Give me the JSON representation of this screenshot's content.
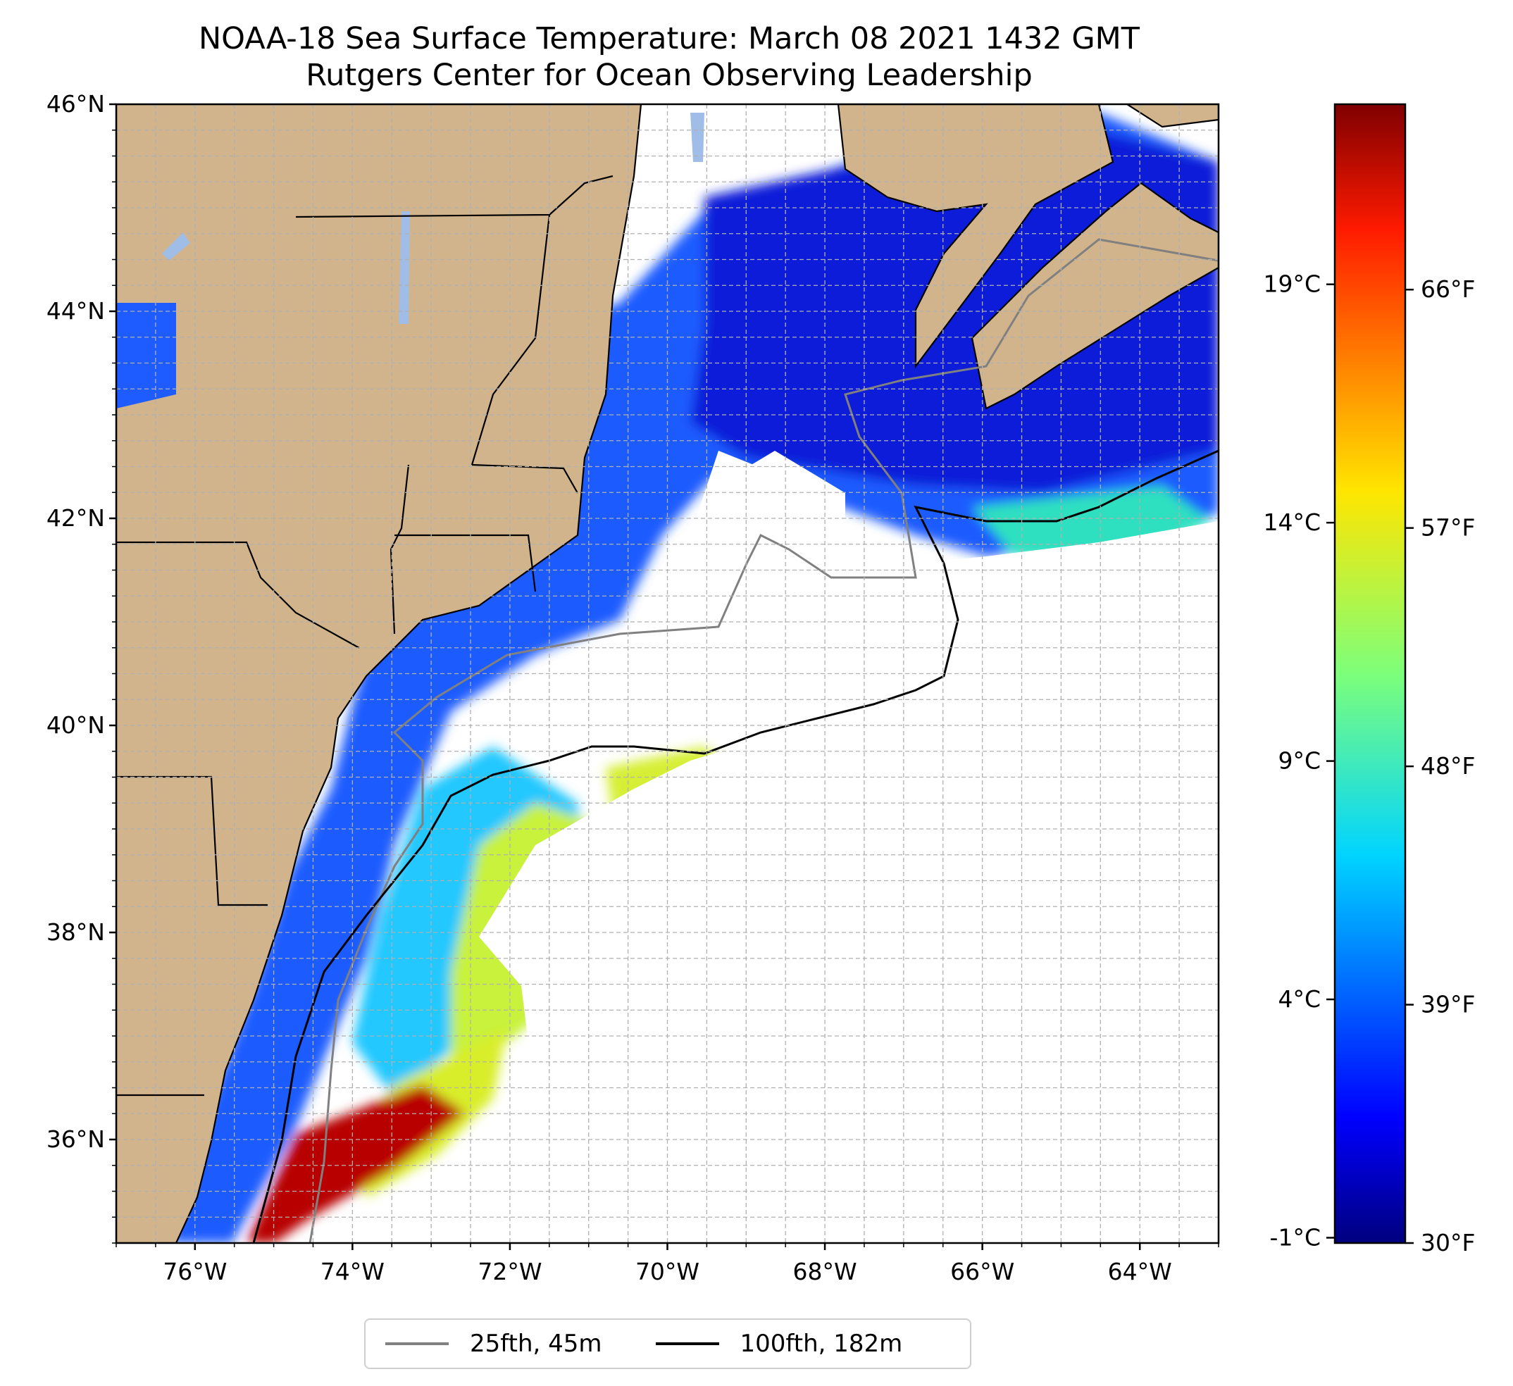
{
  "title": {
    "line1": "NOAA-18 Sea Surface Temperature: March 08 2021 1432 GMT",
    "line2": "Rutgers Center for Ocean Observing Leadership"
  },
  "map": {
    "lon_range": [
      -77,
      -63
    ],
    "lat_range": [
      35,
      46
    ],
    "lat_ticks": [
      {
        "value": 46,
        "label": "46°N"
      },
      {
        "value": 44,
        "label": "44°N"
      },
      {
        "value": 42,
        "label": "42°N"
      },
      {
        "value": 40,
        "label": "40°N"
      },
      {
        "value": 38,
        "label": "38°N"
      },
      {
        "value": 36,
        "label": "36°N"
      }
    ],
    "lon_ticks": [
      {
        "value": -76,
        "label": "76°W"
      },
      {
        "value": -74,
        "label": "74°W"
      },
      {
        "value": -72,
        "label": "72°W"
      },
      {
        "value": -70,
        "label": "70°W"
      },
      {
        "value": -68,
        "label": "68°W"
      },
      {
        "value": -66,
        "label": "66°W"
      },
      {
        "value": -64,
        "label": "64°W"
      }
    ],
    "gridlines": true,
    "colors": {
      "land": "#d2b48c",
      "lakes": "#9fbde6",
      "borders": "#000000",
      "no_data": "#ffffff",
      "grid": "#b0b0b0"
    }
  },
  "colorbar": {
    "colormap": "jet",
    "celsius_ticks": [
      {
        "value": 19,
        "label": "19°C"
      },
      {
        "value": 14,
        "label": "14°C"
      },
      {
        "value": 9,
        "label": "9°C"
      },
      {
        "value": 4,
        "label": "4°C"
      },
      {
        "value": -1,
        "label": "-1°C"
      }
    ],
    "fahrenheit_ticks": [
      {
        "value": 66,
        "label": "66°F"
      },
      {
        "value": 57,
        "label": "57°F"
      },
      {
        "value": 48,
        "label": "48°F"
      },
      {
        "value": 39,
        "label": "39°F"
      },
      {
        "value": 30,
        "label": "30°F"
      }
    ],
    "range_f": [
      30,
      73
    ]
  },
  "legend": {
    "items": [
      {
        "label": "25fth, 45m",
        "color": "#808080"
      },
      {
        "label": "100fth, 182m",
        "color": "#000000"
      }
    ]
  }
}
